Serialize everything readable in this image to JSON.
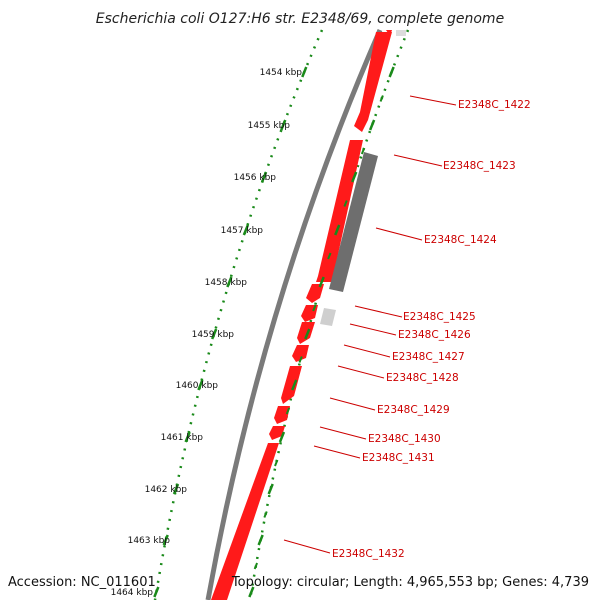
{
  "title": "Escherichia coli O127:H6 str. E2348/69, complete genome",
  "footer": {
    "accession": "Accession: NC_011601",
    "summary": "Topology: circular; Length: 4,965,553 bp; Genes: 4,739"
  },
  "colors": {
    "gene": "#ff1a1a",
    "gene_label": "#cc0000",
    "grey_feature": "#6e6e6e",
    "light_grey_feature": "#cfcfcf",
    "backbone": "#7a7a7a",
    "ruler": "#1a8a1a"
  },
  "ruler_labels": [
    "1454 kbp",
    "1455 kbp",
    "1456 kbp",
    "1457 kbp",
    "1458 kbp",
    "1459 kbp",
    "1460 kbp",
    "1461 kbp",
    "1462 kbp",
    "1463 kbp",
    "1464 kbp"
  ],
  "gene_labels": [
    "E2348C_1422",
    "E2348C_1423",
    "E2348C_1424",
    "E2348C_1425",
    "E2348C_1426",
    "E2348C_1427",
    "E2348C_1428",
    "E2348C_1429",
    "E2348C_1430",
    "E2348C_1431",
    "E2348C_1432"
  ]
}
